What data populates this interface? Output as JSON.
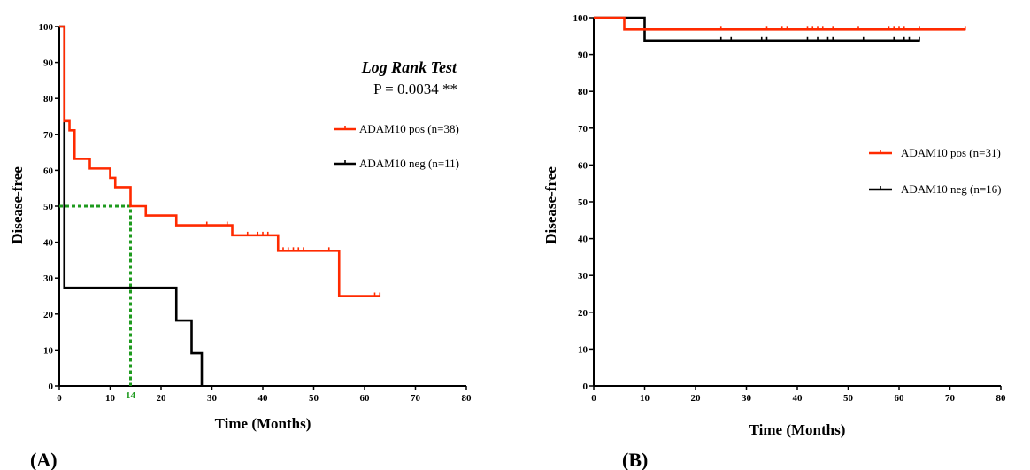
{
  "colors": {
    "pos": "#ff2a00",
    "neg": "#000000",
    "median": "#1e9a1e"
  },
  "chart_data": [
    {
      "type": "line",
      "panel_label": "(A)",
      "xlabel": "Time (Months)",
      "ylabel": "Disease-free",
      "xlim": [
        0,
        80
      ],
      "ylim": [
        0,
        100
      ],
      "xticks": [
        0,
        10,
        20,
        30,
        40,
        50,
        60,
        70,
        80
      ],
      "yticks": [
        0,
        10,
        20,
        30,
        40,
        50,
        60,
        70,
        80,
        90,
        100
      ],
      "annotation": {
        "title": "Log Rank Test",
        "p_value": "P = 0.0034 **"
      },
      "median_marker": {
        "x": 14,
        "y": 50,
        "label": "14"
      },
      "series": [
        {
          "name": "ADAM10 pos (n=38)",
          "color": "#ff2a00",
          "steps": [
            [
              0,
              100
            ],
            [
              1,
              73.7
            ],
            [
              2,
              71.1
            ],
            [
              3,
              63.2
            ],
            [
              6,
              60.5
            ],
            [
              10,
              57.9
            ],
            [
              11,
              55.3
            ],
            [
              14,
              50
            ],
            [
              17,
              47.4
            ],
            [
              23,
              44.7
            ],
            [
              34,
              41.9
            ],
            [
              43,
              37.6
            ],
            [
              55,
              25
            ],
            [
              63,
              25
            ]
          ],
          "censored": [
            [
              29,
              44.7
            ],
            [
              33,
              44.7
            ],
            [
              37,
              41.9
            ],
            [
              39,
              41.9
            ],
            [
              40,
              41.9
            ],
            [
              41,
              41.9
            ],
            [
              44,
              37.6
            ],
            [
              45,
              37.6
            ],
            [
              46,
              37.6
            ],
            [
              47,
              37.6
            ],
            [
              48,
              37.6
            ],
            [
              53,
              37.6
            ],
            [
              62,
              25
            ],
            [
              63,
              25
            ]
          ]
        },
        {
          "name": "ADAM10 neg (n=11)",
          "color": "#000000",
          "steps": [
            [
              0,
              100
            ],
            [
              1,
              27.3
            ],
            [
              23,
              18.2
            ],
            [
              26,
              9.1
            ],
            [
              28,
              0
            ]
          ],
          "censored": []
        }
      ]
    },
    {
      "type": "line",
      "panel_label": "(B)",
      "xlabel": "Time (Months)",
      "ylabel": "Disease-free",
      "xlim": [
        0,
        80
      ],
      "ylim": [
        0,
        100
      ],
      "xticks": [
        0,
        10,
        20,
        30,
        40,
        50,
        60,
        70,
        80
      ],
      "yticks": [
        0,
        10,
        20,
        30,
        40,
        50,
        60,
        70,
        80,
        90,
        100
      ],
      "series": [
        {
          "name": "ADAM10 pos (n=31)",
          "color": "#ff2a00",
          "steps": [
            [
              0,
              100
            ],
            [
              6,
              96.8
            ],
            [
              73,
              96.8
            ]
          ],
          "censored": [
            [
              25,
              96.8
            ],
            [
              34,
              96.8
            ],
            [
              37,
              96.8
            ],
            [
              38,
              96.8
            ],
            [
              42,
              96.8
            ],
            [
              43,
              96.8
            ],
            [
              44,
              96.8
            ],
            [
              45,
              96.8
            ],
            [
              47,
              96.8
            ],
            [
              52,
              96.8
            ],
            [
              58,
              96.8
            ],
            [
              59,
              96.8
            ],
            [
              60,
              96.8
            ],
            [
              61,
              96.8
            ],
            [
              64,
              96.8
            ],
            [
              73,
              96.8
            ]
          ]
        },
        {
          "name": "ADAM10 neg (n=16)",
          "color": "#000000",
          "steps": [
            [
              0,
              100
            ],
            [
              10,
              93.8
            ],
            [
              64,
              93.8
            ]
          ],
          "censored": [
            [
              25,
              93.8
            ],
            [
              27,
              93.8
            ],
            [
              33,
              93.8
            ],
            [
              34,
              93.8
            ],
            [
              42,
              93.8
            ],
            [
              44,
              93.8
            ],
            [
              46,
              93.8
            ],
            [
              47,
              93.8
            ],
            [
              53,
              93.8
            ],
            [
              59,
              93.8
            ],
            [
              61,
              93.8
            ],
            [
              62,
              93.8
            ],
            [
              64,
              93.8
            ]
          ]
        }
      ]
    }
  ]
}
